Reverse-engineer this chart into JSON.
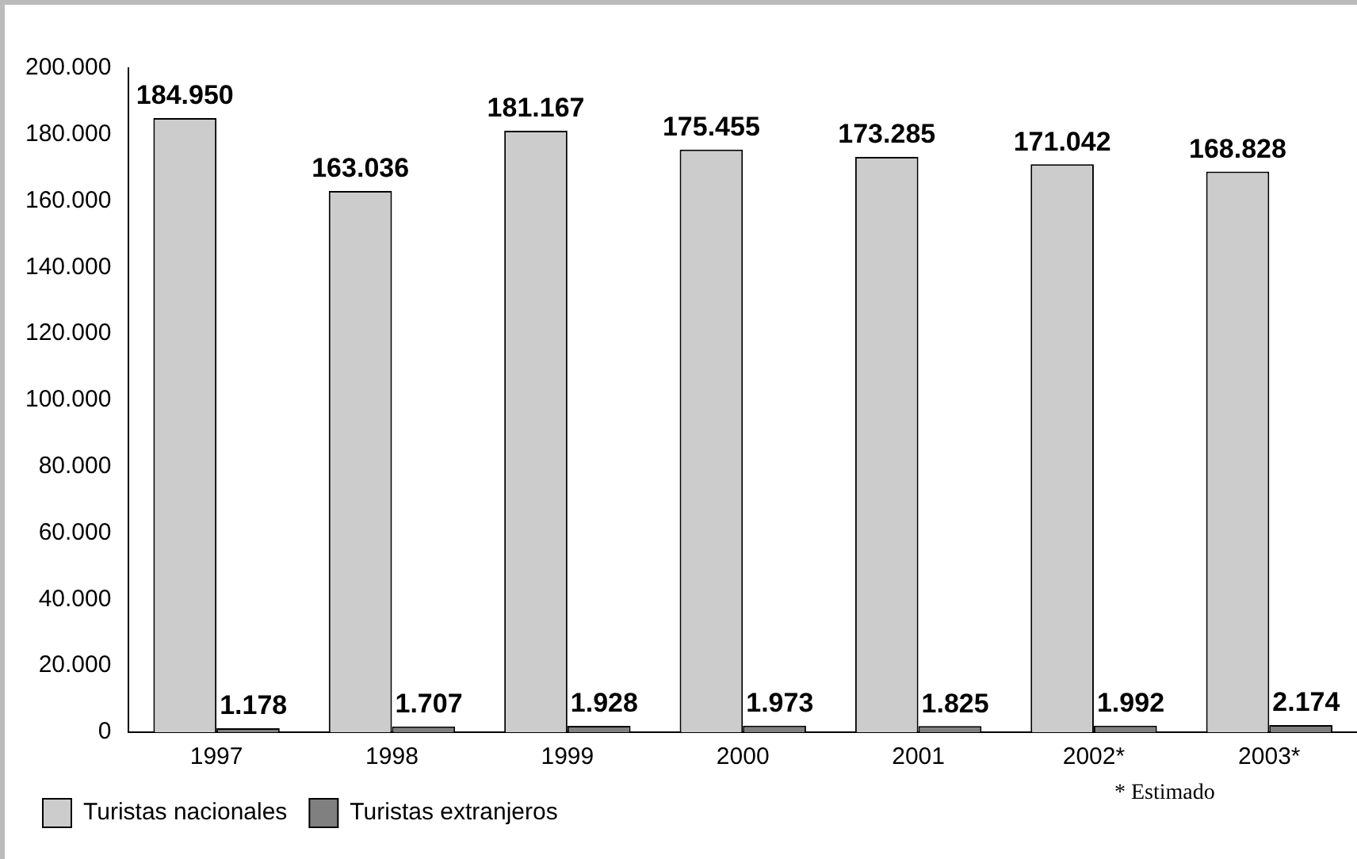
{
  "chart_data": {
    "type": "bar",
    "categories": [
      "1997",
      "1998",
      "1999",
      "2000",
      "2001",
      "2002*",
      "2003*"
    ],
    "series": [
      {
        "name": "Turistas nacionales",
        "color": "#cccccc",
        "values": [
          184950,
          163036,
          181167,
          175455,
          173285,
          171042,
          168828
        ],
        "value_labels": [
          "184.950",
          "163.036",
          "181.167",
          "175.455",
          "173.285",
          "171.042",
          "168.828"
        ]
      },
      {
        "name": "Turistas extranjeros",
        "color": "#808080",
        "values": [
          1178,
          1707,
          1928,
          1973,
          1825,
          1992,
          2174
        ],
        "value_labels": [
          "1.178",
          "1.707",
          "1.928",
          "1.973",
          "1.825",
          "1.992",
          "2.174"
        ]
      }
    ],
    "ylim": [
      0,
      200000
    ],
    "yticks": [
      {
        "value": 0,
        "label": "0"
      },
      {
        "value": 20000,
        "label": "20.000"
      },
      {
        "value": 40000,
        "label": "40.000"
      },
      {
        "value": 60000,
        "label": "60.000"
      },
      {
        "value": 80000,
        "label": "80.000"
      },
      {
        "value": 100000,
        "label": "100.000"
      },
      {
        "value": 120000,
        "label": "120.000"
      },
      {
        "value": 140000,
        "label": "140.000"
      },
      {
        "value": 160000,
        "label": "160.000"
      },
      {
        "value": 180000,
        "label": "180.000"
      },
      {
        "value": 200000,
        "label": "200.000"
      }
    ],
    "grid": false,
    "legend": "bottom left",
    "annotations": [
      "* Estimado"
    ]
  }
}
